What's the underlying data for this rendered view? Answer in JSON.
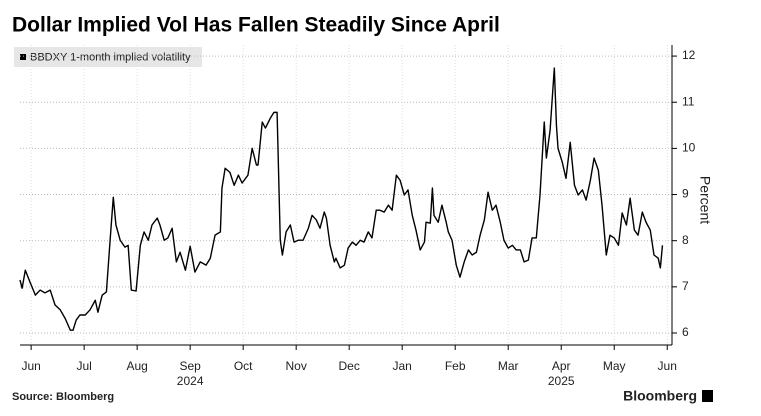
{
  "chart_data": {
    "type": "line",
    "title": "Dollar Implied Vol Has Fallen Steadily Since April",
    "y_label": "Percent",
    "source": "Source: Bloomberg",
    "logo": "Bloomberg",
    "y_axis_side": "right",
    "grid": true,
    "legend": "top-left",
    "x": [
      -0.21,
      -0.17,
      -0.11,
      -0.02,
      0.08,
      0.17,
      0.26,
      0.36,
      0.45,
      0.55,
      0.64,
      0.74,
      0.79,
      0.85,
      0.92,
      1.02,
      1.11,
      1.21,
      1.26,
      1.34,
      1.42,
      1.49,
      1.55,
      1.6,
      1.68,
      1.77,
      1.83,
      1.89,
      1.98,
      2.06,
      2.13,
      2.21,
      2.28,
      2.38,
      2.43,
      2.51,
      2.58,
      2.66,
      2.74,
      2.81,
      2.91,
      3.0,
      3.09,
      3.19,
      3.3,
      3.38,
      3.47,
      3.57,
      3.6,
      3.66,
      3.75,
      3.83,
      3.91,
      3.98,
      4.09,
      4.17,
      4.25,
      4.28,
      4.36,
      4.42,
      4.51,
      4.58,
      4.64,
      4.7,
      4.74,
      4.81,
      4.89,
      4.96,
      5.04,
      5.13,
      5.23,
      5.3,
      5.38,
      5.45,
      5.53,
      5.57,
      5.64,
      5.72,
      5.75,
      5.83,
      5.91,
      5.98,
      6.06,
      6.13,
      6.21,
      6.28,
      6.36,
      6.43,
      6.51,
      6.58,
      6.66,
      6.74,
      6.81,
      6.89,
      6.96,
      7.04,
      7.11,
      7.19,
      7.26,
      7.34,
      7.42,
      7.45,
      7.53,
      7.57,
      7.6,
      7.68,
      7.75,
      7.83,
      7.87,
      7.94,
      8.02,
      8.09,
      8.17,
      8.25,
      8.32,
      8.4,
      8.47,
      8.55,
      8.62,
      8.7,
      8.77,
      8.85,
      8.92,
      9.0,
      9.08,
      9.15,
      9.23,
      9.3,
      9.38,
      9.45,
      9.53,
      9.6,
      9.68,
      9.72,
      9.79,
      9.87,
      9.91,
      9.94,
      10.02,
      10.09,
      10.17,
      10.25,
      10.32,
      10.4,
      10.47,
      10.55,
      10.62,
      10.7,
      10.77,
      10.85,
      10.92,
      11.0,
      11.08,
      11.15,
      11.23,
      11.3,
      11.38,
      11.45,
      11.53,
      11.6,
      11.68,
      11.75,
      11.83,
      11.87,
      11.91
    ],
    "series": [
      {
        "name": "BBDXY 1-month implied volatility",
        "color": "#000000",
        "values": [
          7.15,
          6.97,
          7.36,
          7.1,
          6.82,
          6.93,
          6.87,
          6.93,
          6.61,
          6.5,
          6.32,
          6.06,
          6.06,
          6.28,
          6.39,
          6.39,
          6.5,
          6.71,
          6.45,
          6.82,
          6.89,
          8.01,
          8.94,
          8.34,
          8.01,
          7.86,
          7.9,
          6.93,
          6.91,
          7.9,
          8.19,
          8.01,
          8.34,
          8.49,
          8.34,
          8.01,
          8.06,
          8.27,
          7.54,
          7.75,
          7.36,
          7.88,
          7.32,
          7.54,
          7.47,
          7.62,
          8.12,
          8.19,
          9.14,
          9.57,
          9.48,
          9.2,
          9.42,
          9.25,
          9.42,
          10.0,
          9.64,
          9.64,
          10.57,
          10.44,
          10.65,
          10.78,
          10.78,
          8.01,
          7.69,
          8.19,
          8.34,
          7.97,
          8.01,
          8.01,
          8.27,
          8.55,
          8.45,
          8.27,
          8.62,
          8.49,
          7.9,
          7.54,
          7.62,
          7.41,
          7.47,
          7.84,
          7.97,
          7.9,
          8.01,
          7.97,
          8.19,
          8.06,
          8.66,
          8.66,
          8.62,
          8.77,
          8.66,
          9.42,
          9.31,
          8.99,
          9.1,
          8.55,
          8.23,
          7.8,
          7.97,
          8.4,
          8.38,
          9.14,
          8.55,
          8.4,
          8.77,
          8.4,
          8.19,
          8.01,
          7.47,
          7.21,
          7.54,
          7.8,
          7.69,
          7.75,
          8.12,
          8.45,
          9.05,
          8.66,
          8.77,
          8.4,
          8.01,
          7.84,
          7.9,
          7.8,
          7.8,
          7.54,
          7.58,
          8.06,
          8.06,
          8.99,
          10.57,
          9.79,
          10.39,
          11.74,
          10.5,
          10.0,
          9.7,
          9.35,
          10.13,
          9.2,
          8.99,
          9.1,
          8.88,
          9.31,
          9.79,
          9.53,
          8.77,
          7.69,
          8.12,
          8.06,
          7.9,
          8.6,
          8.34,
          8.92,
          8.23,
          8.12,
          8.62,
          8.4,
          8.23,
          7.69,
          7.62,
          7.41,
          7.9
        ]
      }
    ],
    "xlim": [
      -0.21,
      12.09
    ],
    "xticks": [
      {
        "value": 0,
        "label": "Jun"
      },
      {
        "value": 1,
        "label": "Jul"
      },
      {
        "value": 2,
        "label": "Aug"
      },
      {
        "value": 3,
        "label": "Sep"
      },
      {
        "value": 4,
        "label": "Oct"
      },
      {
        "value": 5,
        "label": "Nov"
      },
      {
        "value": 6,
        "label": "Dec"
      },
      {
        "value": 7,
        "label": "Jan"
      },
      {
        "value": 8,
        "label": "Feb"
      },
      {
        "value": 9,
        "label": "Mar"
      },
      {
        "value": 10,
        "label": "Apr"
      },
      {
        "value": 11,
        "label": "May"
      },
      {
        "value": 12,
        "label": "Jun"
      }
    ],
    "annotations": [
      {
        "text": "2024",
        "x": 3
      },
      {
        "text": "2025",
        "x": 10
      }
    ],
    "ylim": [
      5.74,
      12.24
    ],
    "yticks": [
      6,
      7,
      8,
      9,
      10,
      11,
      12
    ]
  }
}
